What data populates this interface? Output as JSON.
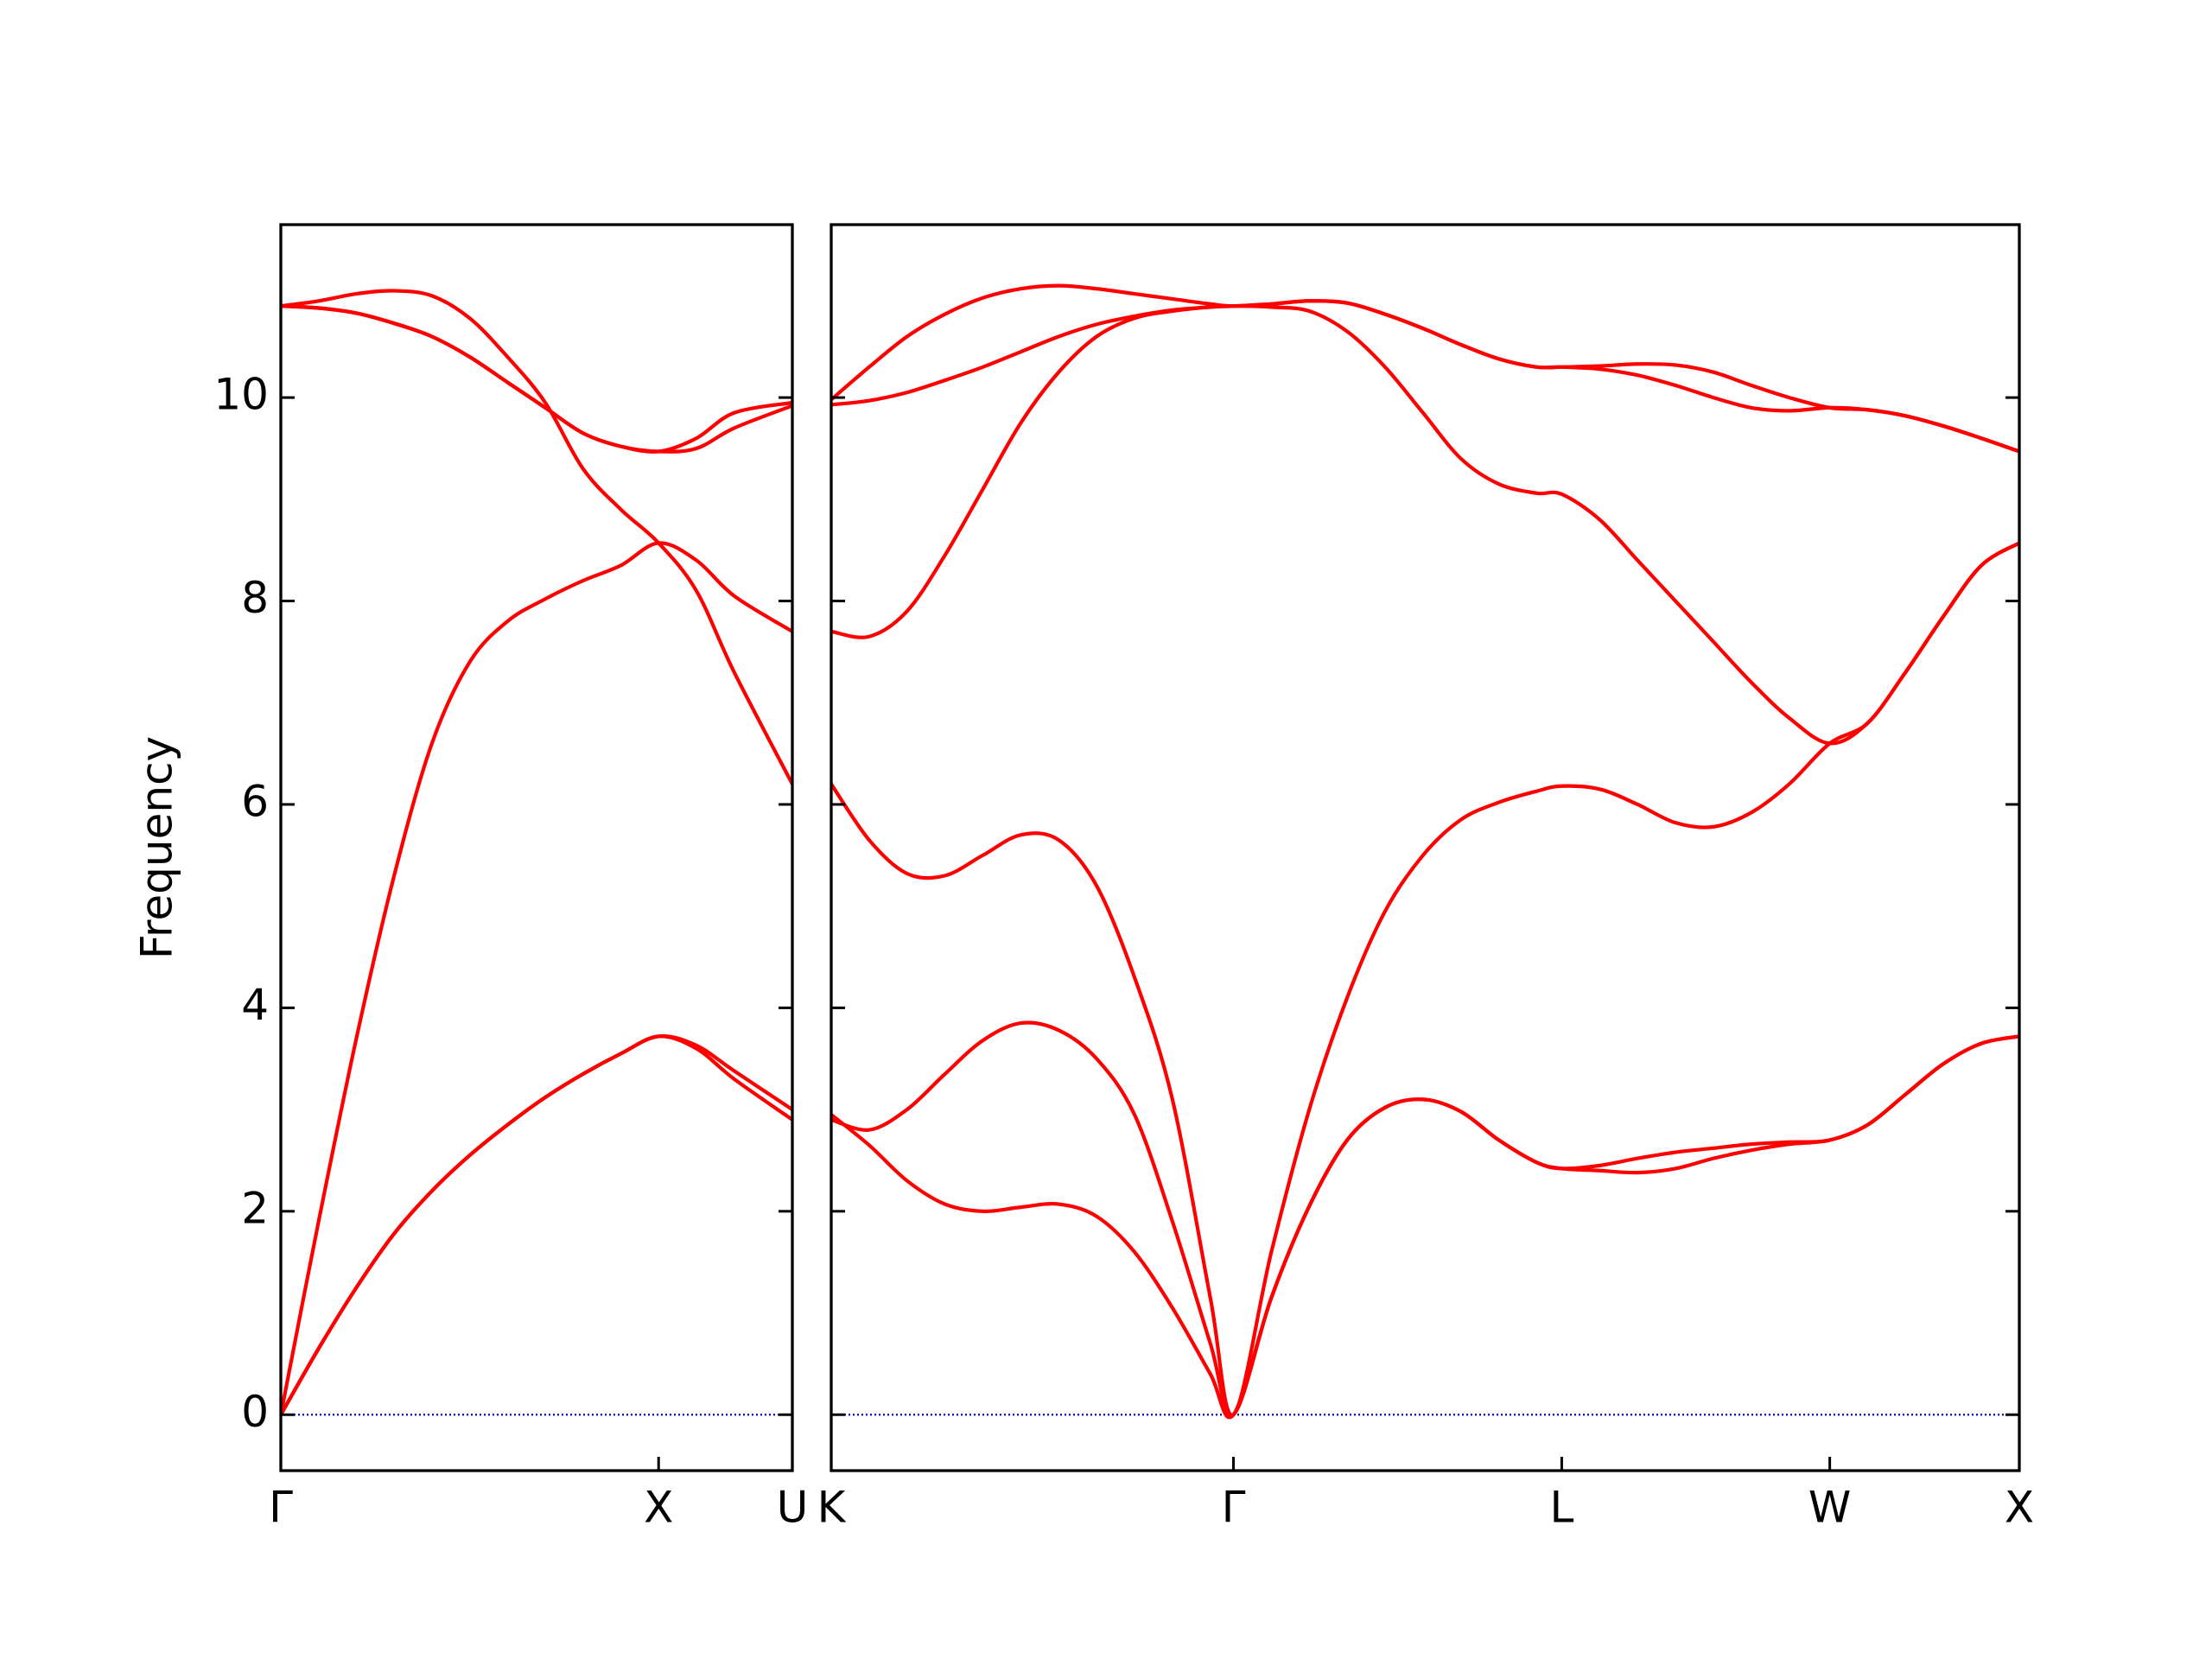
{
  "chart_data": [
    {
      "type": "line",
      "ylabel": "Frequency",
      "x": [
        0,
        0.1,
        0.2,
        0.3,
        0.4,
        0.5,
        0.6,
        0.7,
        0.8,
        0.9,
        1.0,
        1.1,
        1.2,
        1.354
      ],
      "series": [
        {
          "color": "#ff0000",
          "values": [
            0,
            0.65,
            1.25,
            1.78,
            2.2,
            2.55,
            2.85,
            3.12,
            3.35,
            3.55,
            3.72,
            3.6,
            3.3,
            2.9
          ]
        },
        {
          "color": "#ff0000",
          "values": [
            0,
            0.65,
            1.25,
            1.78,
            2.2,
            2.55,
            2.85,
            3.12,
            3.35,
            3.55,
            3.72,
            3.63,
            3.38,
            3.0
          ]
        },
        {
          "color": "#ff0000",
          "values": [
            0,
            1.9,
            3.7,
            5.3,
            6.6,
            7.4,
            7.8,
            8.02,
            8.2,
            8.35,
            8.57,
            8.4,
            8.05,
            7.7
          ]
        },
        {
          "color": "#ff0000",
          "values": [
            10.9,
            10.95,
            11.02,
            11.05,
            11.0,
            10.78,
            10.4,
            9.95,
            9.3,
            8.9,
            8.57,
            8.1,
            7.3,
            6.2
          ]
        },
        {
          "color": "#ff0000",
          "values": [
            10.9,
            10.88,
            10.83,
            10.73,
            10.6,
            10.4,
            10.15,
            9.9,
            9.65,
            9.52,
            9.47,
            9.5,
            9.7,
            9.92
          ]
        },
        {
          "color": "#ff0000",
          "values": [
            10.9,
            10.88,
            10.83,
            10.73,
            10.6,
            10.4,
            10.15,
            9.9,
            9.65,
            9.52,
            9.47,
            9.6,
            9.85,
            9.95
          ]
        }
      ],
      "xlim": [
        0,
        1.354
      ],
      "xticks": [
        {
          "value": 0,
          "label": "Γ"
        },
        {
          "value": 1.0,
          "label": "X"
        },
        {
          "value": 1.354,
          "label": "U"
        }
      ],
      "ylim": [
        -0.55,
        11.7
      ],
      "yticks": [
        0,
        2,
        4,
        6,
        8,
        10
      ],
      "ytick_labels": true,
      "hline": 0,
      "hline_color": "#0000cc"
    },
    {
      "type": "line",
      "x": [
        0,
        0.1,
        0.2,
        0.3,
        0.4,
        0.5,
        0.6,
        0.7,
        0.8,
        0.9,
        1.0,
        1.061,
        1.161,
        1.261,
        1.361,
        1.461,
        1.561,
        1.661,
        1.761,
        1.861,
        1.927,
        2.027,
        2.127,
        2.227,
        2.327,
        2.427,
        2.527,
        2.634,
        2.734,
        2.834,
        2.934,
        3.034,
        3.134
      ],
      "series": [
        {
          "color": "#ff0000",
          "values": [
            2.95,
            2.65,
            2.3,
            2.07,
            2.0,
            2.04,
            2.07,
            1.95,
            1.6,
            1.05,
            0.4,
            0,
            1.15,
            2.05,
            2.7,
            3.02,
            3.1,
            2.98,
            2.7,
            2.48,
            2.42,
            2.4,
            2.38,
            2.42,
            2.52,
            2.6,
            2.66,
            2.7,
            2.85,
            3.15,
            3.45,
            3.65,
            3.72
          ]
        },
        {
          "color": "#ff0000",
          "values": [
            2.9,
            2.8,
            3.0,
            3.35,
            3.68,
            3.85,
            3.78,
            3.5,
            2.95,
            1.9,
            0.7,
            0,
            1.15,
            2.05,
            2.7,
            3.02,
            3.1,
            2.98,
            2.7,
            2.48,
            2.42,
            2.45,
            2.52,
            2.58,
            2.62,
            2.66,
            2.68,
            2.7,
            2.85,
            3.15,
            3.45,
            3.65,
            3.72
          ]
        },
        {
          "color": "#ff0000",
          "values": [
            6.2,
            5.65,
            5.32,
            5.3,
            5.5,
            5.7,
            5.65,
            5.2,
            4.3,
            3.1,
            1.15,
            0,
            1.6,
            3.0,
            4.1,
            4.95,
            5.5,
            5.85,
            6.02,
            6.13,
            6.18,
            6.15,
            6.0,
            5.82,
            5.78,
            5.92,
            6.2,
            6.6,
            6.8,
            7.3,
            7.85,
            8.35,
            8.57
          ]
        },
        {
          "color": "#ff0000",
          "values": [
            7.7,
            7.65,
            7.9,
            8.45,
            9.1,
            9.75,
            10.25,
            10.6,
            10.78,
            10.85,
            10.89,
            10.9,
            10.89,
            10.85,
            10.65,
            10.3,
            9.85,
            9.4,
            9.15,
            9.06,
            9.05,
            8.8,
            8.4,
            8.0,
            7.6,
            7.2,
            6.85,
            6.6,
            6.8,
            7.3,
            7.85,
            8.35,
            8.57
          ]
        },
        {
          "color": "#ff0000",
          "values": [
            9.93,
            9.97,
            10.05,
            10.17,
            10.3,
            10.45,
            10.6,
            10.72,
            10.8,
            10.86,
            10.89,
            10.9,
            10.92,
            10.95,
            10.93,
            10.82,
            10.68,
            10.52,
            10.38,
            10.3,
            10.3,
            10.28,
            10.22,
            10.12,
            10.0,
            9.9,
            9.87,
            9.9,
            9.88,
            9.82,
            9.72,
            9.6,
            9.47
          ]
        },
        {
          "color": "#ff0000",
          "values": [
            9.98,
            10.3,
            10.6,
            10.82,
            10.98,
            11.07,
            11.1,
            11.07,
            11.02,
            10.97,
            10.92,
            10.9,
            10.92,
            10.95,
            10.93,
            10.82,
            10.68,
            10.52,
            10.38,
            10.3,
            10.3,
            10.31,
            10.33,
            10.32,
            10.25,
            10.12,
            10.0,
            9.9,
            9.88,
            9.82,
            9.72,
            9.6,
            9.47
          ]
        }
      ],
      "xlim": [
        0,
        3.134
      ],
      "xticks": [
        {
          "value": 0,
          "label": "K"
        },
        {
          "value": 1.061,
          "label": "Γ"
        },
        {
          "value": 1.927,
          "label": "L"
        },
        {
          "value": 2.634,
          "label": "W"
        },
        {
          "value": 3.134,
          "label": "X"
        }
      ],
      "ylim": [
        -0.55,
        11.7
      ],
      "yticks": [
        0,
        2,
        4,
        6,
        8,
        10
      ],
      "ytick_labels": false,
      "hline": 0,
      "hline_color": "#0000cc"
    }
  ]
}
